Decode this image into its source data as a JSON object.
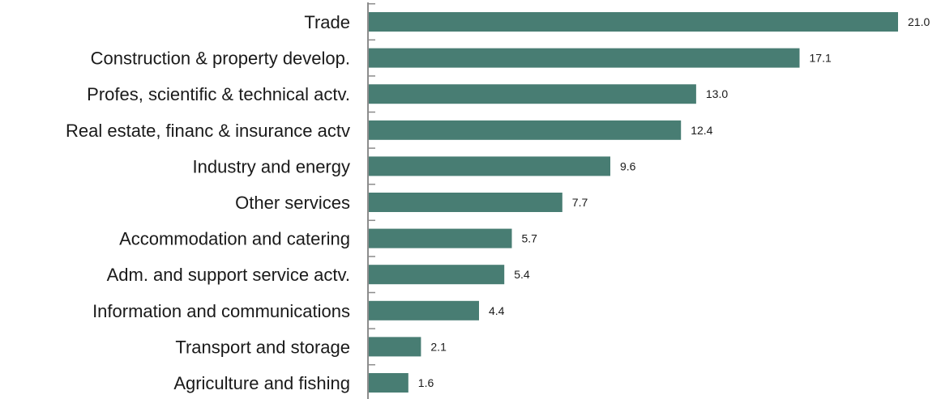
{
  "chart_data": {
    "type": "bar",
    "orientation": "horizontal",
    "title": "",
    "xlabel": "",
    "ylabel": "",
    "categories": [
      "Trade",
      "Construction & property develop.",
      "Profes, scientific & technical actv.",
      "Real estate, financ & insurance actv",
      "Industry and energy",
      "Other services",
      "Accommodation and catering",
      "Adm. and support service actv.",
      "Information and communications",
      "Transport and storage",
      "Agriculture and fishing"
    ],
    "values": [
      21.0,
      17.1,
      13.0,
      12.4,
      9.6,
      7.7,
      5.7,
      5.4,
      4.4,
      2.1,
      1.6
    ],
    "value_labels": [
      "21.0",
      "17.1",
      "13.0",
      "12.4",
      "9.6",
      "7.7",
      "5.7",
      "5.4",
      "4.4",
      "2.1",
      "1.6"
    ],
    "xlim": [
      0,
      21.0
    ],
    "grid": false,
    "legend": "none",
    "bar_color": "#487d73",
    "axis_color": "#8c8c8c"
  }
}
